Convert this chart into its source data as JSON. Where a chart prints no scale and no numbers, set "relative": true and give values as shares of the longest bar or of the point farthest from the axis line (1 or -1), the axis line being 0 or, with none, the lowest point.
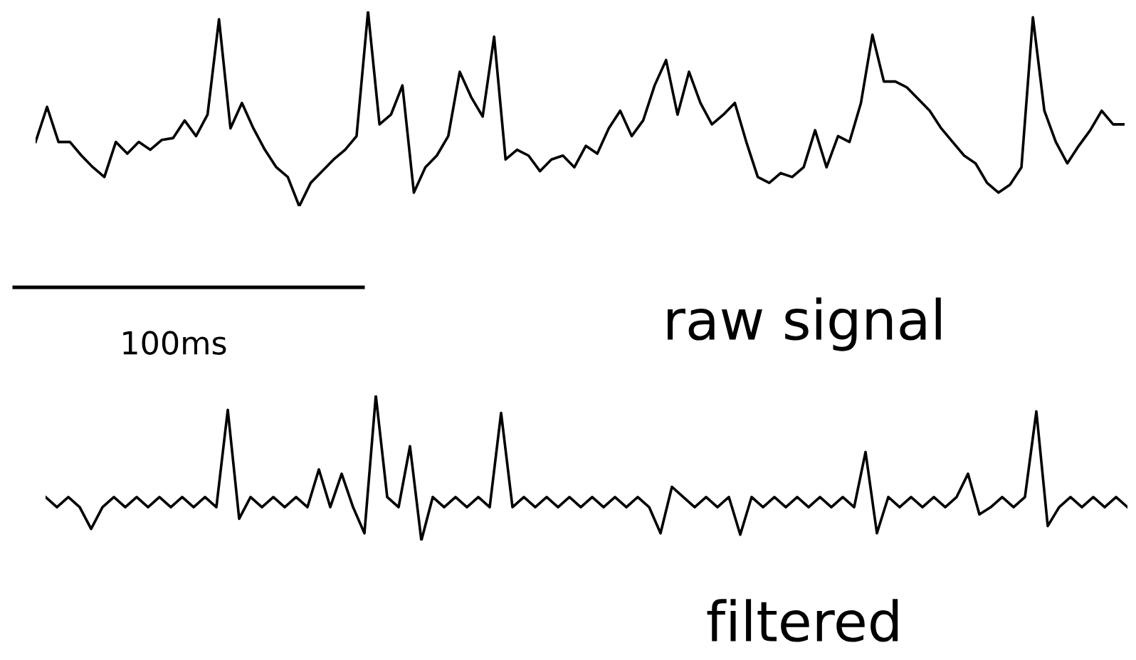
{
  "chart_data": [
    {
      "type": "line",
      "relative": true,
      "title": "raw signal",
      "annotations": [
        "100ms"
      ],
      "color": "#000000",
      "categories": [
        null,
        null,
        null,
        null,
        null,
        null,
        null,
        null,
        null,
        null,
        null,
        null,
        null,
        null,
        null,
        null,
        null,
        null,
        null,
        null,
        null,
        null,
        null,
        null,
        null,
        null,
        null,
        null,
        null,
        null,
        null,
        null,
        null,
        null,
        null,
        null,
        null,
        null,
        null,
        null,
        null,
        null,
        null,
        null,
        null,
        null,
        null,
        null,
        null,
        null,
        null,
        null,
        null,
        null,
        null,
        null,
        null,
        null,
        null,
        null,
        null,
        null,
        null,
        null,
        null,
        null,
        null,
        null,
        null,
        null,
        null,
        null,
        null,
        null,
        null,
        null,
        null,
        null,
        null,
        null,
        null,
        null,
        null,
        null,
        null,
        null,
        null,
        null,
        null,
        null,
        null,
        null,
        null,
        null,
        null,
        null
      ],
      "values": [
        0.33,
        0.51,
        0.33,
        0.33,
        0.26,
        0.2,
        0.15,
        0.33,
        0.27,
        0.33,
        0.29,
        0.34,
        0.35,
        0.44,
        0.36,
        0.47,
        0.96,
        0.4,
        0.53,
        0.4,
        0.29,
        0.2,
        0.15,
        0,
        0.12,
        0.18,
        0.24,
        0.29,
        0.36,
        1,
        0.42,
        0.47,
        0.62,
        0.07,
        0.2,
        0.26,
        0.36,
        0.69,
        0.56,
        0.46,
        0.87,
        0.24,
        0.29,
        0.26,
        0.18,
        0.24,
        0.26,
        0.2,
        0.31,
        0.27,
        0.4,
        0.49,
        0.36,
        0.44,
        0.62,
        0.75,
        0.47,
        0.69,
        0.53,
        0.42,
        0.47,
        0.53,
        0.33,
        0.15,
        0.12,
        0.17,
        0.15,
        0.2,
        0.39,
        0.2,
        0.36,
        0.33,
        0.53,
        0.88,
        0.64,
        0.64,
        0.61,
        0.55,
        0.49,
        0.4,
        0.33,
        0.26,
        0.22,
        0.12,
        0.07,
        0.11,
        0.2,
        0.97,
        0.49,
        0.33,
        0.22,
        0.31,
        0.39,
        0.49,
        0.42,
        0.42
      ]
    },
    {
      "type": "line",
      "relative": true,
      "title": "filtered",
      "color": "#000000",
      "categories": [
        null,
        null,
        null,
        null,
        null,
        null,
        null,
        null,
        null,
        null,
        null,
        null,
        null,
        null,
        null,
        null,
        null,
        null,
        null,
        null,
        null,
        null,
        null,
        null,
        null,
        null,
        null,
        null,
        null,
        null,
        null,
        null,
        null,
        null,
        null,
        null,
        null,
        null,
        null,
        null,
        null,
        null,
        null,
        null,
        null,
        null,
        null,
        null,
        null,
        null,
        null,
        null,
        null,
        null,
        null,
        null,
        null,
        null,
        null,
        null,
        null,
        null,
        null,
        null,
        null,
        null,
        null,
        null,
        null,
        null,
        null,
        null,
        null,
        null,
        null,
        null,
        null,
        null,
        null,
        null,
        null,
        null,
        null,
        null,
        null,
        null,
        null,
        null,
        null,
        null,
        null,
        null,
        null,
        null,
        null,
        null
      ],
      "values": [
        0.3,
        0.23,
        0.3,
        0.23,
        0.08,
        0.23,
        0.3,
        0.23,
        0.3,
        0.23,
        0.3,
        0.23,
        0.3,
        0.23,
        0.3,
        0.23,
        0.9,
        0.15,
        0.3,
        0.23,
        0.3,
        0.23,
        0.3,
        0.23,
        0.49,
        0.23,
        0.46,
        0.23,
        0.05,
        1,
        0.3,
        0.23,
        0.65,
        0,
        0.3,
        0.23,
        0.3,
        0.23,
        0.3,
        0.23,
        0.88,
        0.23,
        0.3,
        0.23,
        0.3,
        0.23,
        0.3,
        0.23,
        0.3,
        0.23,
        0.3,
        0.23,
        0.3,
        0.23,
        0.05,
        0.37,
        0.3,
        0.23,
        0.3,
        0.23,
        0.3,
        0.04,
        0.3,
        0.23,
        0.3,
        0.23,
        0.3,
        0.23,
        0.3,
        0.23,
        0.3,
        0.23,
        0.61,
        0.05,
        0.3,
        0.23,
        0.3,
        0.23,
        0.3,
        0.23,
        0.3,
        0.46,
        0.18,
        0.23,
        0.3,
        0.23,
        0.3,
        0.89,
        0.1,
        0.23,
        0.3,
        0.23,
        0.3,
        0.23,
        0.3,
        0.23
      ]
    }
  ]
}
